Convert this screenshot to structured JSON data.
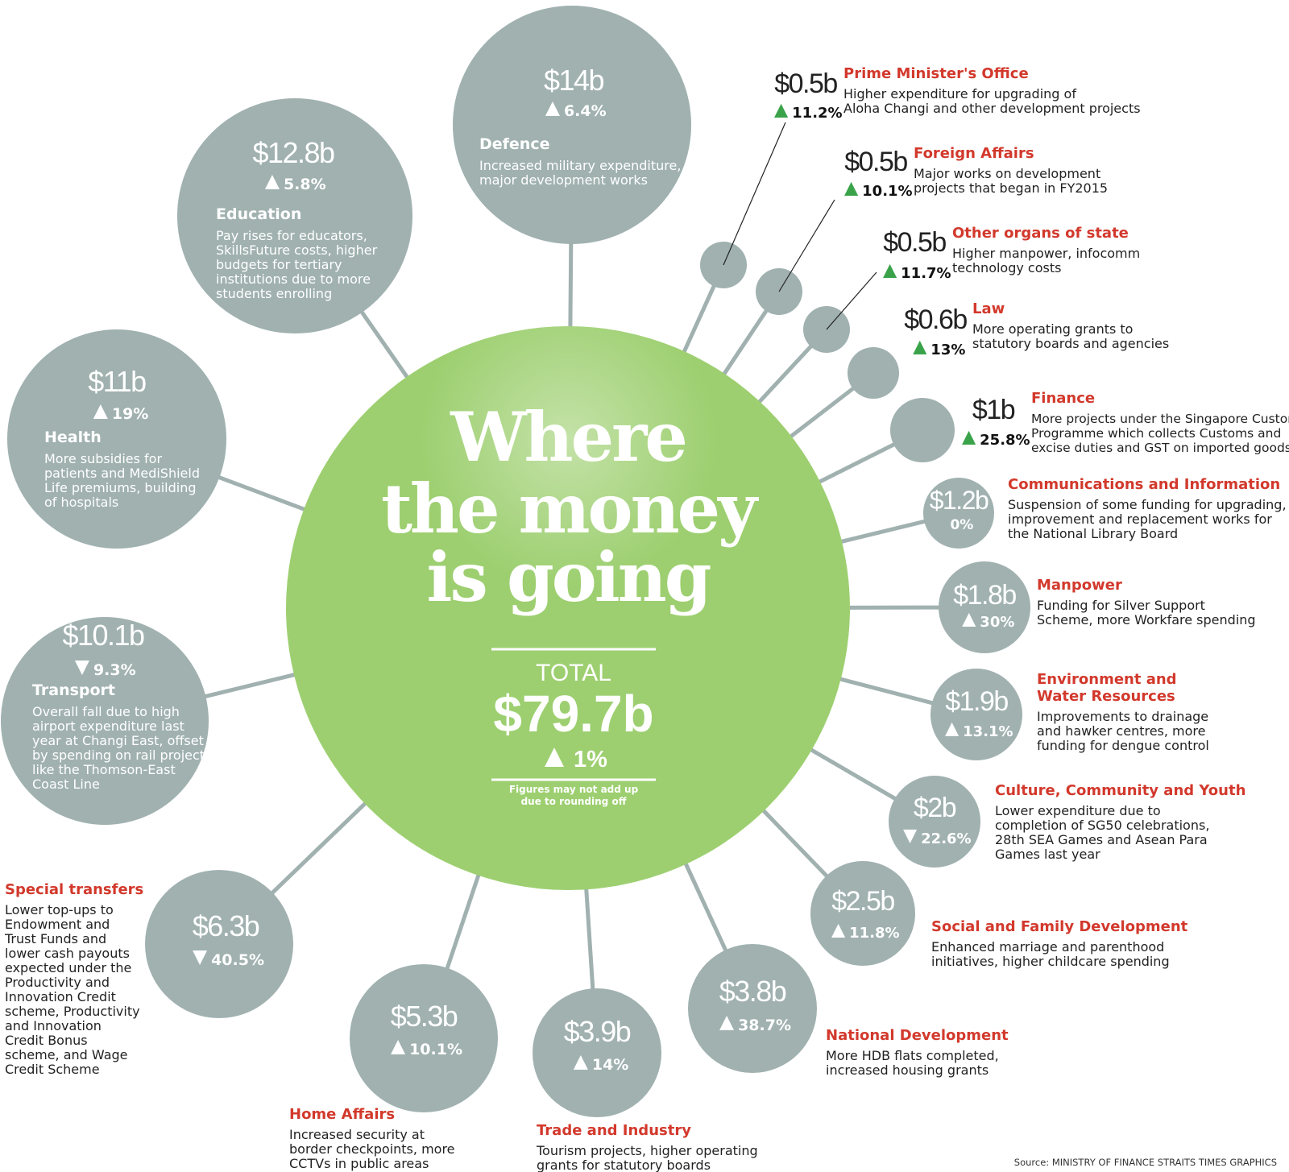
{
  "title_lines": [
    "Where",
    "the money",
    "is going"
  ],
  "total": {
    "label": "TOTAL",
    "value": "$79.7b",
    "change": "1%",
    "direction": "up"
  },
  "note_lines": [
    "Figures may not add up",
    "due to rounding off"
  ],
  "source": "Source: MINISTRY OF FINANCE   STRAITS TIMES GRAPHICS",
  "colors": {
    "bubble": "#a0b1b0",
    "hub": "#9dcf70",
    "connector": "#a0b1b0",
    "ministry_name": "#d2392c",
    "up_arrow_outside": "#3aa34a"
  },
  "ministries": [
    {
      "name": "Defence",
      "amount": "$14b",
      "change": "6.4%",
      "direction": "up",
      "desc": [
        "Increased military expenditure,",
        "major development works"
      ]
    },
    {
      "name": "Education",
      "amount": "$12.8b",
      "change": "5.8%",
      "direction": "up",
      "desc": [
        "Pay rises for educators,",
        "SkillsFuture costs, higher",
        "budgets for tertiary",
        "institutions due to more",
        "students enrolling"
      ]
    },
    {
      "name": "Health",
      "amount": "$11b",
      "change": "19%",
      "direction": "up",
      "desc": [
        "More subsidies for",
        "patients and MediShield",
        "Life premiums, building",
        "of hospitals"
      ]
    },
    {
      "name": "Transport",
      "amount": "$10.1b",
      "change": "9.3%",
      "direction": "down",
      "desc": [
        "Overall fall due to high",
        "airport expenditure last",
        "year at Changi East, offset",
        "by spending on rail projects",
        "like the Thomson-East",
        "Coast Line"
      ]
    },
    {
      "name": "Special transfers",
      "amount": "$6.3b",
      "change": "40.5%",
      "direction": "down",
      "desc": [
        "Lower top-ups to",
        "Endowment and",
        "Trust Funds and",
        "lower cash payouts",
        "expected under the",
        "Productivity and",
        "Innovation Credit",
        "scheme, Productivity",
        "and Innovation",
        "Credit Bonus",
        "scheme, and Wage",
        "Credit Scheme"
      ]
    },
    {
      "name": "Home Affairs",
      "amount": "$5.3b",
      "change": "10.1%",
      "direction": "up",
      "desc": [
        "Increased security at",
        "border checkpoints, more",
        "CCTVs in public areas"
      ]
    },
    {
      "name": "Trade and Industry",
      "amount": "$3.9b",
      "change": "14%",
      "direction": "up",
      "desc": [
        "Tourism projects, higher operating",
        "grants for statutory boards"
      ]
    },
    {
      "name": "National Development",
      "amount": "$3.8b",
      "change": "38.7%",
      "direction": "up",
      "desc": [
        "More HDB flats completed,",
        "increased housing grants"
      ]
    },
    {
      "name": "Social and Family Development",
      "amount": "$2.5b",
      "change": "11.8%",
      "direction": "up",
      "desc": [
        "Enhanced marriage and parenthood",
        "initiatives, higher childcare spending"
      ]
    },
    {
      "name": "Culture, Community and Youth",
      "amount": "$2b",
      "change": "22.6%",
      "direction": "down",
      "desc": [
        "Lower expenditure due to",
        "completion of SG50 celebrations,",
        "28th SEA Games and Asean Para",
        "Games last year"
      ]
    },
    {
      "name": "Environment and Water Resources",
      "name_lines": [
        "Environment and",
        "Water Resources"
      ],
      "amount": "$1.9b",
      "change": "13.1%",
      "direction": "up",
      "desc": [
        "Improvements to drainage",
        "and hawker centres, more",
        "funding for dengue control"
      ]
    },
    {
      "name": "Manpower",
      "amount": "$1.8b",
      "change": "30%",
      "direction": "up",
      "desc": [
        "Funding for Silver Support",
        "Scheme, more Workfare spending"
      ]
    },
    {
      "name": "Communications and Information",
      "amount": "$1.2b",
      "change": "0%",
      "direction": "none",
      "desc": [
        "Suspension of some funding for upgrading,",
        "improvement and replacement works for",
        "the National Library Board"
      ]
    },
    {
      "name": "Finance",
      "amount": "$1b",
      "change": "25.8%",
      "direction": "up",
      "desc": [
        "More projects under the Singapore Customs",
        "Programme which collects Customs and",
        "excise duties and GST on imported goods"
      ]
    },
    {
      "name": "Law",
      "amount": "$0.6b",
      "change": "13%",
      "direction": "up",
      "desc": [
        "More operating grants to",
        "statutory boards and agencies"
      ]
    },
    {
      "name": "Other organs of state",
      "amount": "$0.5b",
      "change": "11.7%",
      "direction": "up",
      "desc": [
        "Higher manpower, infocomm",
        "technology costs"
      ]
    },
    {
      "name": "Foreign Affairs",
      "amount": "$0.5b",
      "change": "10.1%",
      "direction": "up",
      "desc": [
        "Major works on development",
        "projects that began in FY2015"
      ]
    },
    {
      "name": "Prime Minister's Office",
      "amount": "$0.5b",
      "change": "11.2%",
      "direction": "up",
      "desc": [
        "Higher expenditure for upgrading of",
        "Aloha Changi and other development projects"
      ]
    }
  ]
}
